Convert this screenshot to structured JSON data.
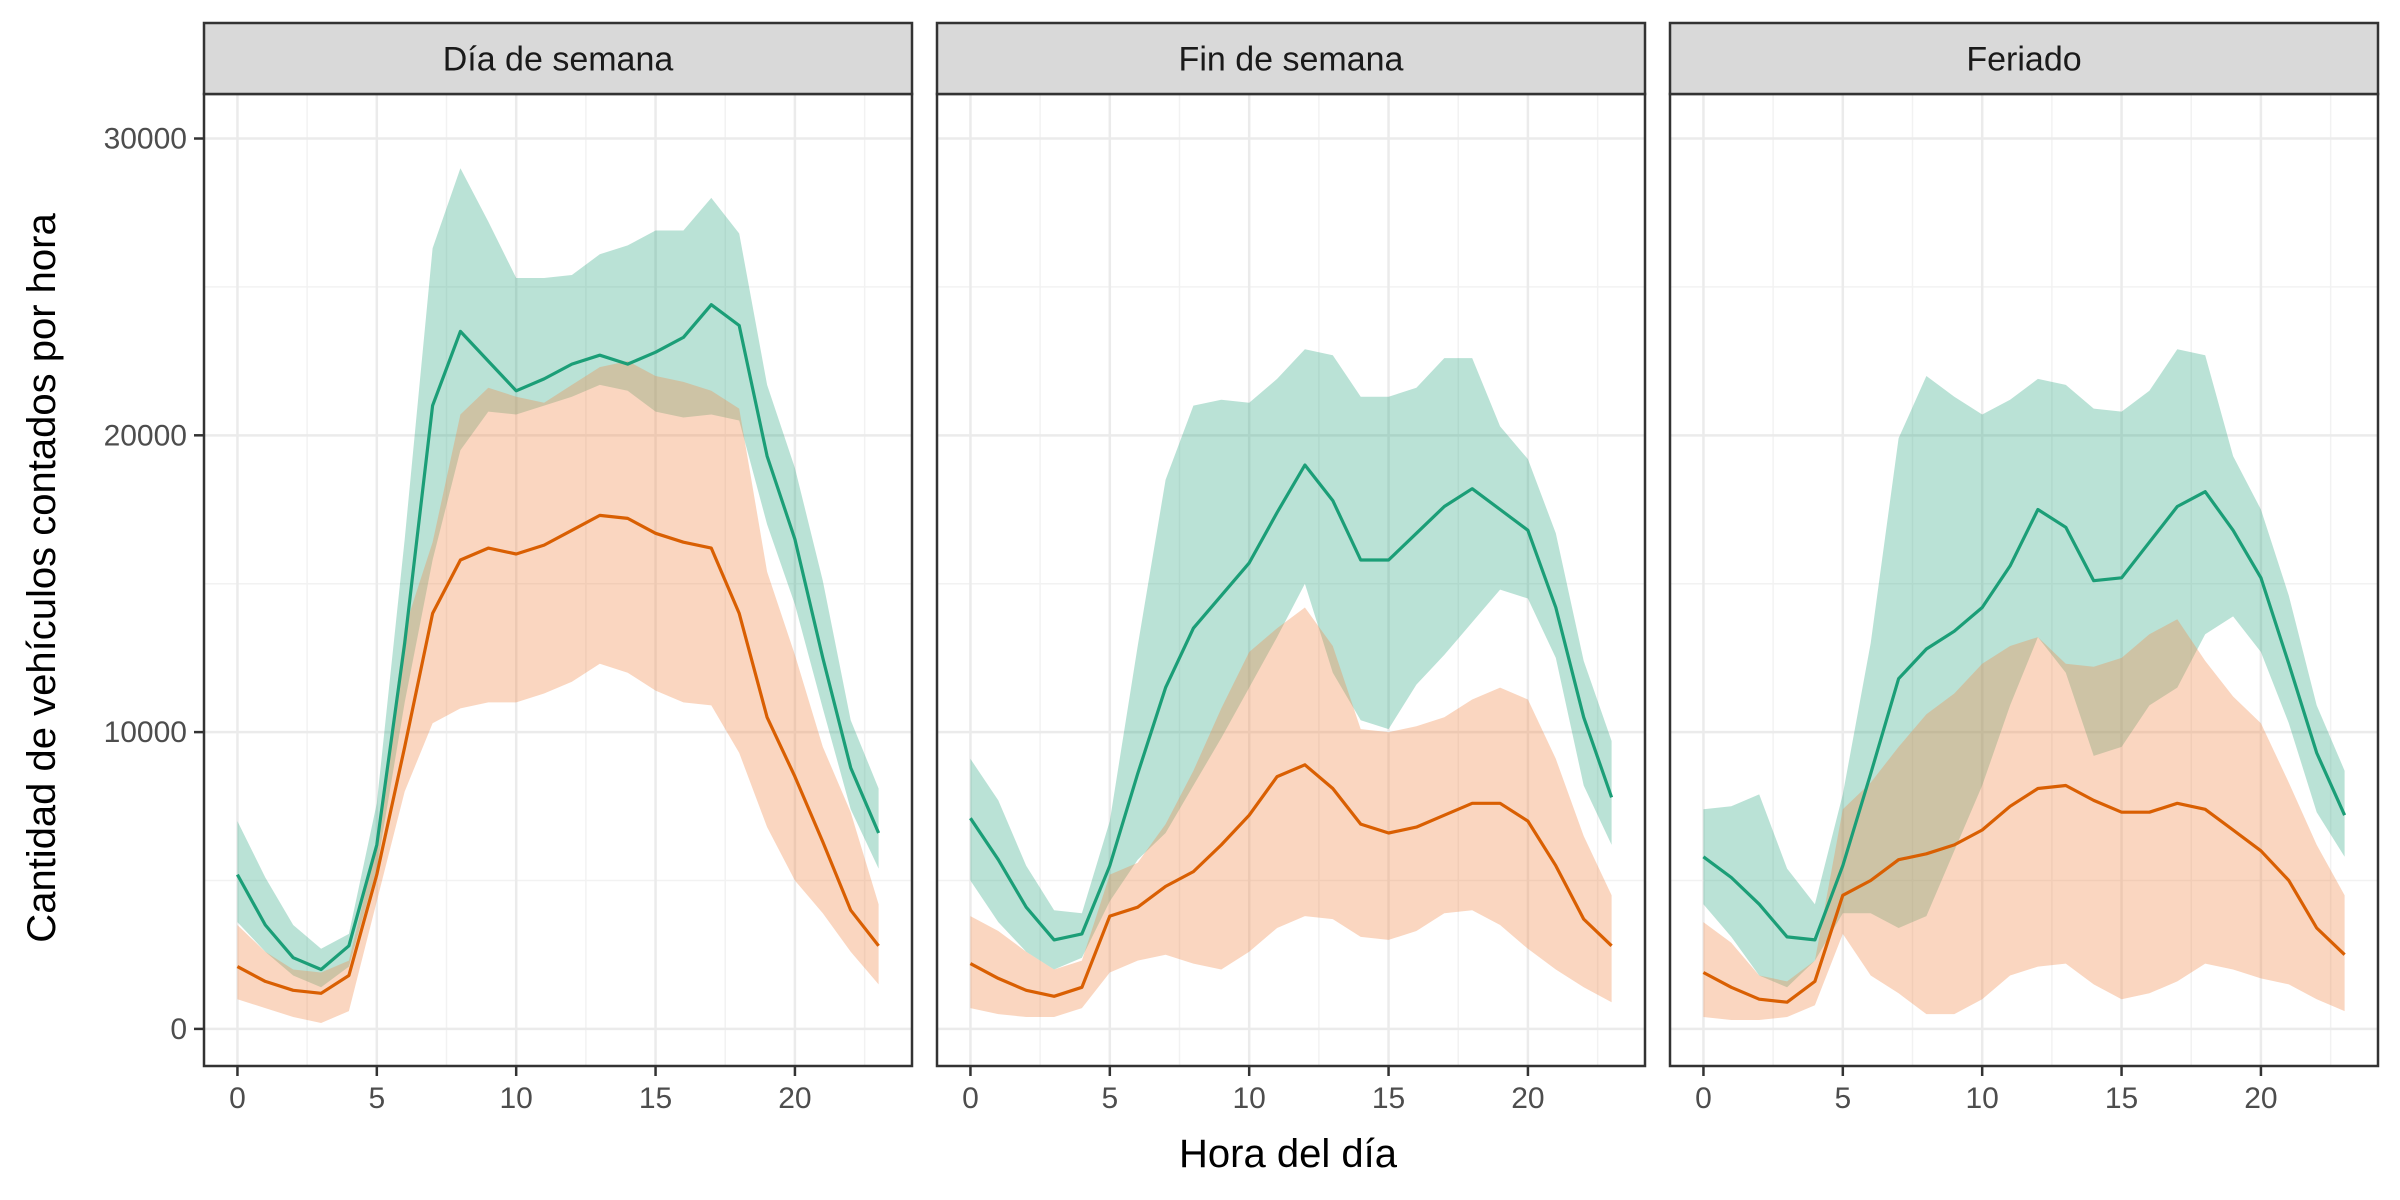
{
  "chart_data": {
    "type": "line",
    "xlabel": "Hora del día",
    "ylabel": "Cantidad de vehículos contados por hora",
    "xlim": [
      -1.2,
      24.2
    ],
    "ylim": [
      -1250,
      31500
    ],
    "xticks": [
      0,
      5,
      10,
      15,
      20
    ],
    "yticks": [
      0,
      10000,
      20000,
      30000
    ],
    "grid": true,
    "legend": "none",
    "colors": {
      "series_a": "#1b9e77",
      "series_b": "#d95f02",
      "band_a": "#1b9e77",
      "band_b": "#f08a4b"
    },
    "x": [
      0,
      1,
      2,
      3,
      4,
      5,
      6,
      7,
      8,
      9,
      10,
      11,
      12,
      13,
      14,
      15,
      16,
      17,
      18,
      19,
      20,
      21,
      22,
      23
    ],
    "panels": [
      {
        "title": "Día de semana",
        "series": [
          {
            "color": "#1b9e77",
            "values": [
              5200,
              3500,
              2400,
              2000,
              2800,
              6200,
              13000,
              21000,
              23500,
              22500,
              21500,
              21900,
              22400,
              22700,
              22400,
              22800,
              23300,
              24400,
              23700,
              19300,
              16500,
              12500,
              8800,
              6600
            ],
            "lower": [
              3600,
              2600,
              1800,
              1400,
              2100,
              5400,
              11000,
              15800,
              19500,
              20800,
              20700,
              21000,
              21300,
              21700,
              21500,
              20800,
              20600,
              20700,
              20500,
              17000,
              14300,
              10800,
              7400,
              5400
            ],
            "upper": [
              7000,
              5100,
              3500,
              2700,
              3200,
              7600,
              16500,
              26300,
              29000,
              27200,
              25300,
              25300,
              25400,
              26100,
              26400,
              26900,
              26900,
              28000,
              26800,
              21700,
              18900,
              15100,
              10400,
              8100
            ]
          },
          {
            "color": "#d95f02",
            "values": [
              2100,
              1600,
              1300,
              1200,
              1800,
              5200,
              9500,
              14000,
              15800,
              16200,
              16000,
              16300,
              16800,
              17300,
              17200,
              16700,
              16400,
              16200,
              14000,
              10500,
              8500,
              6300,
              4000,
              2800
            ],
            "lower": [
              1000,
              700,
              400,
              200,
              600,
              4300,
              8000,
              10300,
              10800,
              11000,
              11000,
              11300,
              11700,
              12300,
              12000,
              11400,
              11000,
              10900,
              9300,
              6800,
              5000,
              3900,
              2600,
              1500
            ],
            "upper": [
              3500,
              2600,
              2000,
              1900,
              2300,
              6200,
              13500,
              16400,
              20700,
              21600,
              21300,
              21100,
              21700,
              22300,
              22500,
              22000,
              21800,
              21500,
              20900,
              15400,
              12600,
              9500,
              7300,
              4200
            ]
          }
        ]
      },
      {
        "title": "Fin de semana",
        "series": [
          {
            "color": "#1b9e77",
            "values": [
              7100,
              5700,
              4100,
              3000,
              3200,
              5500,
              8600,
              11500,
              13500,
              14600,
              15700,
              17400,
              19000,
              17800,
              15800,
              15800,
              16700,
              17600,
              18200,
              17500,
              16800,
              14200,
              10500,
              7800
            ],
            "lower": [
              5000,
              3600,
              2600,
              2000,
              2400,
              4300,
              5700,
              6600,
              8200,
              9800,
              11500,
              13200,
              15000,
              12000,
              10400,
              10100,
              11600,
              12600,
              13700,
              14800,
              14500,
              12500,
              8200,
              6200
            ],
            "upper": [
              9100,
              7700,
              5500,
              4000,
              3900,
              7000,
              12900,
              18500,
              21000,
              21200,
              21100,
              21900,
              22900,
              22700,
              21300,
              21300,
              21600,
              22600,
              22600,
              20300,
              19200,
              16700,
              12400,
              9700
            ]
          },
          {
            "color": "#d95f02",
            "values": [
              2200,
              1700,
              1300,
              1100,
              1400,
              3800,
              4100,
              4800,
              5300,
              6200,
              7200,
              8500,
              8900,
              8100,
              6900,
              6600,
              6800,
              7200,
              7600,
              7600,
              7000,
              5500,
              3700,
              2800
            ],
            "lower": [
              700,
              500,
              400,
              400,
              700,
              1900,
              2300,
              2500,
              2200,
              2000,
              2600,
              3400,
              3800,
              3700,
              3100,
              3000,
              3300,
              3900,
              4000,
              3500,
              2700,
              2000,
              1400,
              900
            ],
            "upper": [
              3800,
              3300,
              2600,
              2000,
              2300,
              5200,
              5600,
              6900,
              8700,
              10800,
              12700,
              13500,
              14200,
              12900,
              10100,
              10000,
              10200,
              10500,
              11100,
              11500,
              11100,
              9100,
              6500,
              4500
            ]
          }
        ]
      },
      {
        "title": "Feriado",
        "series": [
          {
            "color": "#1b9e77",
            "values": [
              5800,
              5100,
              4200,
              3100,
              3000,
              5500,
              8600,
              11800,
              12800,
              13400,
              14200,
              15600,
              17500,
              16900,
              15100,
              15200,
              16400,
              17600,
              18100,
              16800,
              15200,
              12300,
              9300,
              7200
            ],
            "lower": [
              4200,
              3100,
              1800,
              1400,
              2300,
              3900,
              3900,
              3400,
              3800,
              6000,
              8200,
              10900,
              13200,
              12000,
              9200,
              9500,
              10900,
              11500,
              13300,
              13900,
              12700,
              10300,
              7300,
              5800
            ],
            "upper": [
              7400,
              7500,
              7900,
              5400,
              4200,
              7900,
              13000,
              19900,
              22000,
              21300,
              20700,
              21200,
              21900,
              21700,
              20900,
              20800,
              21500,
              22900,
              22700,
              19300,
              17500,
              14600,
              10900,
              8700
            ]
          },
          {
            "color": "#d95f02",
            "values": [
              1900,
              1400,
              1000,
              900,
              1600,
              4500,
              5000,
              5700,
              5900,
              6200,
              6700,
              7500,
              8100,
              8200,
              7700,
              7300,
              7300,
              7600,
              7400,
              6700,
              6000,
              5000,
              3400,
              2500
            ],
            "lower": [
              400,
              300,
              300,
              400,
              800,
              3200,
              1800,
              1200,
              500,
              500,
              1000,
              1800,
              2100,
              2200,
              1500,
              1000,
              1200,
              1600,
              2200,
              2000,
              1700,
              1500,
              1000,
              600
            ],
            "upper": [
              3600,
              2900,
              1800,
              1600,
              2300,
              7400,
              8300,
              9500,
              10600,
              11300,
              12300,
              12900,
              13200,
              12300,
              12200,
              12500,
              13300,
              13800,
              12400,
              11200,
              10300,
              8300,
              6200,
              4500
            ]
          }
        ]
      }
    ]
  }
}
